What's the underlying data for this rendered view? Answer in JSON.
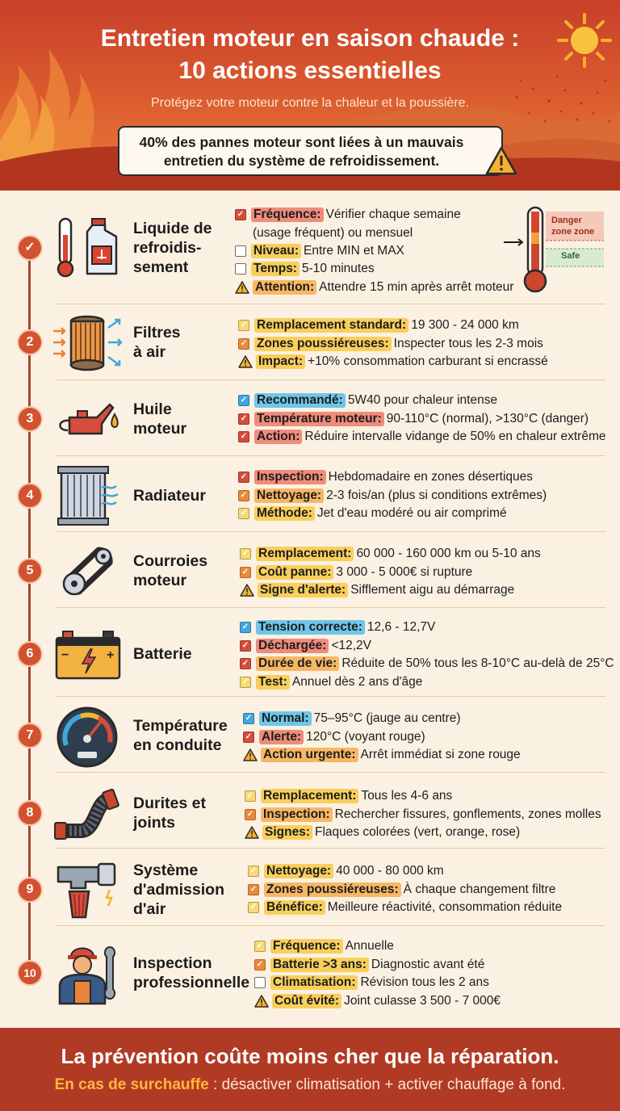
{
  "header": {
    "title_line1": "Entretien moteur en saison chaude :",
    "title_line2": "10 actions essentielles",
    "subtitle": "Protégez votre moteur contre la chaleur et la poussière.",
    "stat_line1": "40% des pannes moteur sont liées à un mauvais",
    "stat_line2": "entretien du système de refroidissement."
  },
  "thermometer": {
    "danger": "Danger",
    "zone_zone": "zone zone",
    "safe": "Safe"
  },
  "sections": [
    {
      "number": "",
      "label_lines": [
        "Liquide de",
        "refroidis-",
        "sement"
      ],
      "icon": "coolant-icon",
      "items": [
        {
          "marker": "red",
          "key": "Fréquence:",
          "key_color": "k-red",
          "text": "Vérifier chaque semaine",
          "cont": "(usage fréquent) ou mensuel"
        },
        {
          "marker": "empty",
          "key": "Niveau:",
          "key_color": "k-yellow",
          "text": "Entre MIN et MAX"
        },
        {
          "marker": "empty",
          "key": "Temps:",
          "key_color": "k-yellow",
          "text": "5-10 minutes"
        },
        {
          "marker": "warn",
          "key": "Attention:",
          "key_color": "k-orange",
          "text": "Attendre 15 min après arrêt moteur"
        }
      ]
    },
    {
      "number": "2",
      "label_lines": [
        "Filtres",
        "à air"
      ],
      "icon": "air-filter-icon",
      "items": [
        {
          "marker": "yellow",
          "key": "Remplacement standard:",
          "key_color": "k-yellow",
          "text": "19 300 - 24 000 km"
        },
        {
          "marker": "orange",
          "key": "Zones poussiéreuses:",
          "key_color": "k-yellow",
          "text": "Inspecter tous les 2-3 mois"
        },
        {
          "marker": "warn",
          "key": "Impact:",
          "key_color": "k-yellow",
          "text": "+10% consommation carburant si encrassé"
        }
      ]
    },
    {
      "number": "3",
      "label_lines": [
        "Huile",
        "moteur"
      ],
      "icon": "oil-can-icon",
      "items": [
        {
          "marker": "blue",
          "key": "Recommandé:",
          "key_color": "k-blue",
          "text": "5W40 pour chaleur intense"
        },
        {
          "marker": "red",
          "key": "Température moteur:",
          "key_color": "k-red",
          "text": "90-110°C (normal), >130°C (danger)"
        },
        {
          "marker": "red",
          "key": "Action:",
          "key_color": "k-red",
          "text": "Réduire intervalle vidange de 50% en chaleur extrême"
        }
      ]
    },
    {
      "number": "4",
      "label_lines": [
        "Radiateur"
      ],
      "icon": "radiator-icon",
      "items": [
        {
          "marker": "red",
          "key": "Inspection:",
          "key_color": "k-red",
          "text": "Hebdomadaire en zones désertiques"
        },
        {
          "marker": "orange",
          "key": "Nettoyage:",
          "key_color": "k-orange",
          "text": "2-3 fois/an (plus si conditions extrêmes)"
        },
        {
          "marker": "yellow",
          "key": "Méthode:",
          "key_color": "k-yellow",
          "text": "Jet d'eau modéré ou air comprimé"
        }
      ]
    },
    {
      "number": "5",
      "label_lines": [
        "Courroies",
        "moteur"
      ],
      "icon": "belt-icon",
      "items": [
        {
          "marker": "yellow",
          "key": "Remplacement:",
          "key_color": "k-yellow",
          "text": "60 000 - 160 000 km ou 5-10 ans"
        },
        {
          "marker": "orange",
          "key": "Coût panne:",
          "key_color": "k-yellow",
          "text": "3 000 - 5 000€ si rupture"
        },
        {
          "marker": "warn",
          "key": "Signe d'alerte:",
          "key_color": "k-yellow",
          "text": "Sifflement aigu au démarrage"
        }
      ]
    },
    {
      "number": "6",
      "label_lines": [
        "Batterie"
      ],
      "icon": "battery-icon",
      "items": [
        {
          "marker": "blue",
          "key": "Tension correcte:",
          "key_color": "k-blue",
          "text": "12,6 - 12,7V"
        },
        {
          "marker": "red",
          "key": "Déchargée:",
          "key_color": "k-red",
          "text": "<12,2V"
        },
        {
          "marker": "red",
          "key": "Durée de vie:",
          "key_color": "k-orange",
          "text": "Réduite de 50% tous les 8-10°C au-delà de 25°C"
        },
        {
          "marker": "yellow",
          "key": "Test:",
          "key_color": "k-yellow",
          "text": "Annuel dès 2 ans d'âge"
        }
      ]
    },
    {
      "number": "7",
      "label_lines": [
        "Température",
        "en conduite"
      ],
      "icon": "gauge-icon",
      "items": [
        {
          "marker": "blue",
          "key": "Normal:",
          "key_color": "k-blue",
          "text": "75–95°C (jauge au centre)"
        },
        {
          "marker": "red",
          "key": "Alerte:",
          "key_color": "k-red",
          "text": "120°C (voyant rouge)"
        },
        {
          "marker": "warn",
          "key": "Action urgente:",
          "key_color": "k-orange",
          "text": "Arrêt immédiat si zone rouge"
        }
      ]
    },
    {
      "number": "8",
      "label_lines": [
        "Durites et",
        "joints"
      ],
      "icon": "hose-icon",
      "items": [
        {
          "marker": "yellow",
          "key": "Remplacement:",
          "key_color": "k-yellow",
          "text": "Tous les 4-6 ans"
        },
        {
          "marker": "orange",
          "key": "Inspection:",
          "key_color": "k-orange",
          "text": "Rechercher fissures, gonflements, zones molles"
        },
        {
          "marker": "warn",
          "key": "Signes:",
          "key_color": "k-yellow",
          "text": "Flaques colorées (vert, orange, rose)"
        }
      ]
    },
    {
      "number": "9",
      "label_lines": [
        "Système",
        "d'admission",
        "d'air"
      ],
      "icon": "air-intake-icon",
      "items": [
        {
          "marker": "yellow",
          "key": "Nettoyage:",
          "key_color": "k-yellow",
          "text": "40 000 - 80 000 km"
        },
        {
          "marker": "orange",
          "key": "Zones poussiéreuses:",
          "key_color": "k-orange",
          "text": "À chaque changement filtre"
        },
        {
          "marker": "yellow",
          "key": "Bénéfice:",
          "key_color": "k-yellow",
          "text": "Meilleure réactivité, consommation réduite"
        }
      ]
    },
    {
      "number": "10",
      "label_lines": [
        "Inspection",
        "professionnelle"
      ],
      "icon": "mechanic-icon",
      "items": [
        {
          "marker": "yellow",
          "key": "Fréquence:",
          "key_color": "k-yellow",
          "text": "Annuelle"
        },
        {
          "marker": "orange",
          "key": "Batterie >3 ans:",
          "key_color": "k-yellow",
          "text": "Diagnostic avant été"
        },
        {
          "marker": "empty",
          "key": "Climatisation:",
          "key_color": "k-yellow",
          "text": "Révision tous les 2 ans"
        },
        {
          "marker": "warn",
          "key": "Coût évité:",
          "key_color": "k-yellow",
          "text": "Joint culasse 3 500 - 7 000€"
        }
      ]
    }
  ],
  "footer": {
    "main": "La prévention coûte moins cher que la réparation.",
    "sub_bold": "En cas de surchauffe",
    "sub_rest": " : désactiver climatisation + activer chauffage à fond."
  }
}
